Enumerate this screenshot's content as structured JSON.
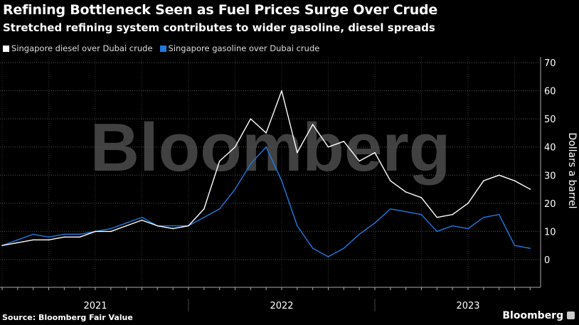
{
  "title": "Refining Bottleneck Seen as Fuel Prices Surge Over Crude",
  "subtitle": "Stretched refining system contributes to wider gasoline, diesel spreads",
  "source": "Source: Bloomberg Fair Value",
  "brand": "Bloomberg",
  "watermark": "Bloomberg",
  "chart_data": {
    "type": "line",
    "ylabel": "Dollars a barrel",
    "ylim": [
      -5,
      72
    ],
    "yticks": [
      0,
      10,
      20,
      30,
      40,
      50,
      60,
      70
    ],
    "xticks": [
      "2021",
      "2022",
      "2023"
    ],
    "grid": true,
    "legend_position": "top-left",
    "x": [
      "2021-01",
      "2021-02",
      "2021-03",
      "2021-04",
      "2021-05",
      "2021-06",
      "2021-07",
      "2021-08",
      "2021-09",
      "2021-10",
      "2021-11",
      "2021-12",
      "2022-01",
      "2022-02",
      "2022-03",
      "2022-04",
      "2022-05",
      "2022-06",
      "2022-07",
      "2022-08",
      "2022-09",
      "2022-10",
      "2022-11",
      "2022-12",
      "2023-01",
      "2023-02",
      "2023-03",
      "2023-04",
      "2023-05",
      "2023-06",
      "2023-07",
      "2023-08",
      "2023-09",
      "2023-10",
      "2023-11"
    ],
    "series": [
      {
        "name": "Singapore diesel over Dubai crude",
        "color": "#ffffff",
        "values": [
          5,
          6,
          7,
          7,
          8,
          8,
          10,
          10,
          12,
          14,
          12,
          11,
          12,
          18,
          35,
          40,
          50,
          45,
          60,
          38,
          48,
          40,
          42,
          35,
          38,
          28,
          24,
          22,
          15,
          16,
          20,
          28,
          30,
          28,
          25
        ]
      },
      {
        "name": "Singapore gasoline over Dubai crude",
        "color": "#1f7ae0",
        "values": [
          5,
          7,
          9,
          8,
          9,
          9,
          10,
          11,
          13,
          15,
          12,
          12,
          12,
          15,
          18,
          25,
          34,
          40,
          28,
          12,
          4,
          1,
          4,
          9,
          13,
          18,
          17,
          16,
          10,
          12,
          11,
          15,
          16,
          5,
          4
        ]
      }
    ]
  }
}
